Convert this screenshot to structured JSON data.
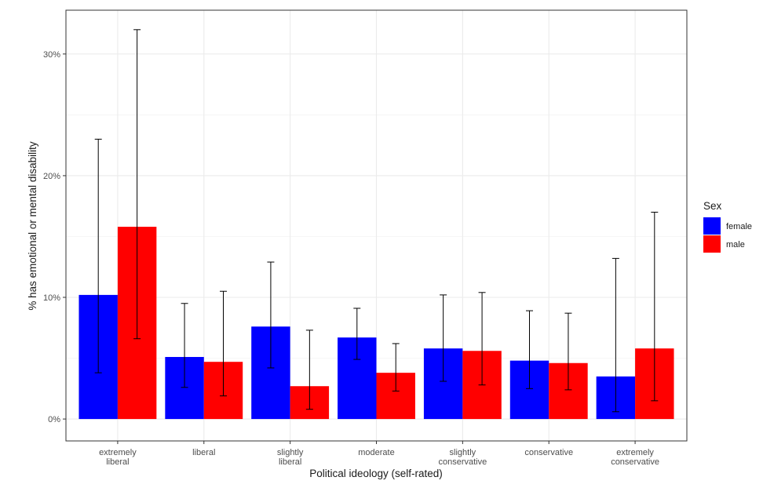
{
  "chart_data": {
    "type": "bar",
    "categories": [
      [
        "extremely",
        "liberal"
      ],
      [
        "liberal"
      ],
      [
        "slightly",
        "liberal"
      ],
      [
        "moderate"
      ],
      [
        "slightly",
        "conservative"
      ],
      [
        "conservative"
      ],
      [
        "extremely",
        "conservative"
      ]
    ],
    "series": [
      {
        "name": "female",
        "color": "#0000ff",
        "values": [
          10.2,
          5.1,
          7.6,
          6.7,
          5.8,
          4.8,
          3.5
        ],
        "error_low": [
          3.8,
          2.6,
          4.2,
          4.9,
          3.1,
          2.5,
          0.6
        ],
        "error_high": [
          23.0,
          9.5,
          12.9,
          9.1,
          10.2,
          8.9,
          13.2
        ]
      },
      {
        "name": "male",
        "color": "#ff0000",
        "values": [
          15.8,
          4.7,
          2.7,
          3.8,
          5.6,
          4.6,
          5.8
        ],
        "error_low": [
          6.6,
          1.9,
          0.8,
          2.3,
          2.8,
          2.4,
          1.5
        ],
        "error_high": [
          32.0,
          10.5,
          7.3,
          6.2,
          10.4,
          8.7,
          17.0
        ]
      }
    ],
    "yticks": [
      "0%",
      "10%",
      "20%",
      "30%"
    ],
    "ytick_values": [
      0,
      10,
      20,
      30
    ],
    "ylim": [
      -1.8,
      33.6
    ],
    "xlabel": "Political ideology (self-rated)",
    "ylabel": "% has emotional or mental disability",
    "legend_title": "Sex",
    "legend_position": "right",
    "grid": true
  }
}
